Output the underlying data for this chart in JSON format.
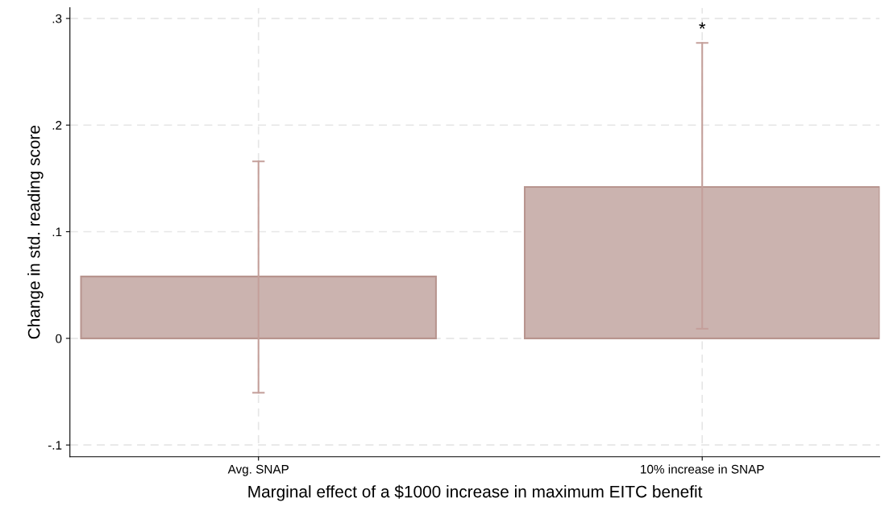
{
  "chart_data": {
    "type": "bar",
    "categories": [
      "Avg. SNAP",
      "10% increase in SNAP"
    ],
    "values": [
      0.058,
      0.142
    ],
    "errors": [
      [
        -0.051,
        0.166
      ],
      [
        0.009,
        0.277
      ]
    ],
    "color": "#cbb3af",
    "ylabel": "Change in std. reading score",
    "xlabel": "Marginal effect of a $1000 increase in maximum EITC benefit",
    "ylim": [
      -0.111,
      0.31
    ],
    "yticks": [
      {
        "value": -0.1,
        "label": "-.1"
      },
      0,
      {
        "value": 0.1,
        "label": ".1"
      },
      {
        "value": 0.2,
        "label": ".2"
      },
      {
        "value": 0.3,
        "label": ".3"
      }
    ],
    "grid": true,
    "annotations": [
      "*"
    ]
  }
}
